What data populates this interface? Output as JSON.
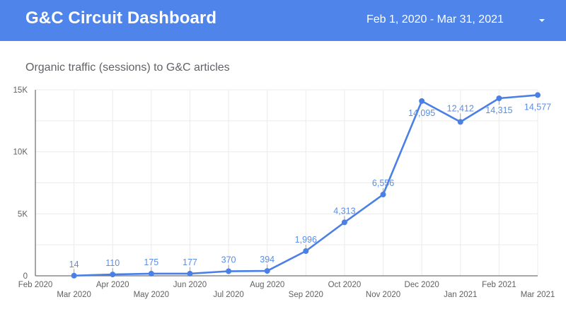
{
  "header": {
    "title": "G&C Circuit Dashboard",
    "date_range": "Feb 1, 2020 - Mar 31, 2021",
    "date_range_icon": "caret-down-icon",
    "background_color": "#4f84ea"
  },
  "chart": {
    "title": "Organic traffic (sessions) to G&C articles"
  },
  "chart_data": {
    "type": "line",
    "title": "Organic traffic (sessions) to G&C articles",
    "xlabel": "",
    "ylabel": "",
    "x_ticks": [
      "Feb 2020",
      "Mar 2020",
      "Apr 2020",
      "May 2020",
      "Jun 2020",
      "Jul 2020",
      "Aug 2020",
      "Sep 2020",
      "Oct 2020",
      "Nov 2020",
      "Dec 2020",
      "Jan 2021",
      "Feb 2021",
      "Mar 2021"
    ],
    "y_ticks": [
      "0",
      "5K",
      "10K",
      "15K"
    ],
    "ylim": [
      0,
      15000
    ],
    "grid": true,
    "line_color": "#4a80e6",
    "series": [
      {
        "name": "Sessions",
        "points": [
          {
            "x": "Mar 2020",
            "y": 14,
            "label": "14"
          },
          {
            "x": "Apr 2020",
            "y": 110,
            "label": "110"
          },
          {
            "x": "May 2020",
            "y": 175,
            "label": "175"
          },
          {
            "x": "Jun 2020",
            "y": 177,
            "label": "177"
          },
          {
            "x": "Jul 2020",
            "y": 370,
            "label": "370"
          },
          {
            "x": "Aug 2020",
            "y": 394,
            "label": "394"
          },
          {
            "x": "Sep 2020",
            "y": 1996,
            "label": "1,996"
          },
          {
            "x": "Oct 2020",
            "y": 4313,
            "label": "4,313"
          },
          {
            "x": "Nov 2020",
            "y": 6556,
            "label": "6,556"
          },
          {
            "x": "Dec 2020",
            "y": 14095,
            "label": "14,095"
          },
          {
            "x": "Jan 2021",
            "y": 12412,
            "label": "12,412"
          },
          {
            "x": "Feb 2021",
            "y": 14315,
            "label": "14,315"
          },
          {
            "x": "Mar 2021",
            "y": 14577,
            "label": "14,577"
          }
        ]
      }
    ]
  }
}
